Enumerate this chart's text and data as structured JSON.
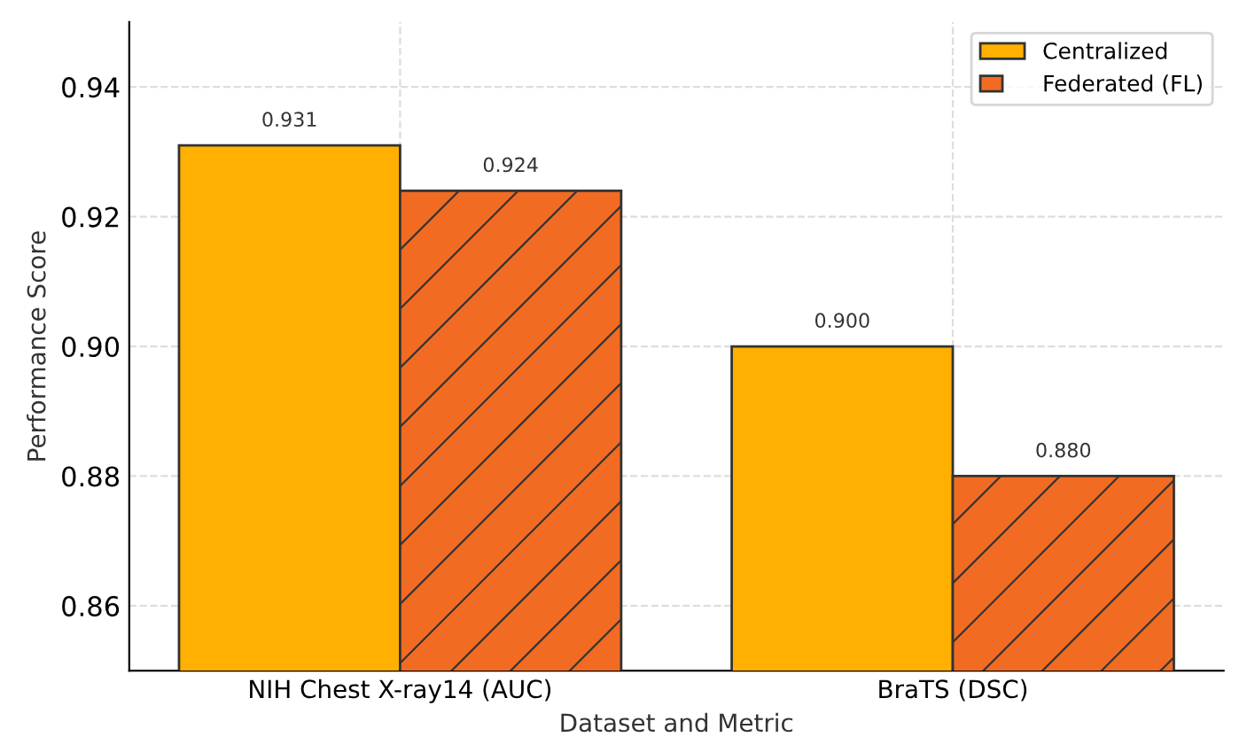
{
  "chart_data": {
    "type": "bar",
    "xlabel": "Dataset and Metric",
    "ylabel": "Performance Score",
    "categories": [
      "NIH Chest X-ray14 (AUC)",
      "BraTS (DSC)"
    ],
    "series": [
      {
        "name": "Centralized",
        "color": "#ffb000",
        "values": [
          0.931,
          0.9
        ],
        "value_labels": [
          "0.931",
          "0.900"
        ]
      },
      {
        "name": "Federated (FL)",
        "color": "#f26b22",
        "values": [
          0.924,
          0.88
        ],
        "value_labels": [
          "0.924",
          "0.880"
        ]
      }
    ],
    "ylim": [
      0.85,
      0.95
    ],
    "yticks": [
      {
        "value": 0.86,
        "label": "0.86"
      },
      {
        "value": 0.88,
        "label": "0.88"
      },
      {
        "value": 0.9,
        "label": "0.90"
      },
      {
        "value": 0.92,
        "label": "0.92"
      },
      {
        "value": 0.94,
        "label": "0.94"
      }
    ],
    "grid": true,
    "legend": "top right"
  }
}
